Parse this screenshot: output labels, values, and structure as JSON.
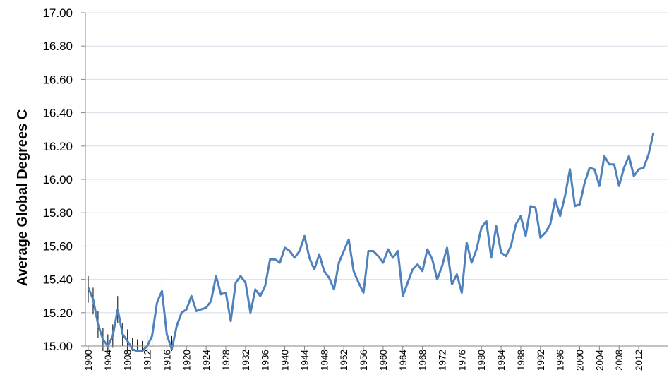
{
  "chart_data": {
    "type": "line",
    "title": "",
    "xlabel": "",
    "ylabel": "Average Global Degrees  C",
    "xlim": [
      1900,
      2015
    ],
    "ylim": [
      15.0,
      17.0
    ],
    "y_ticks": [
      "15.00",
      "15.20",
      "15.40",
      "15.60",
      "15.80",
      "16.00",
      "16.20",
      "16.40",
      "16.60",
      "16.80",
      "17.00"
    ],
    "x_ticks": [
      "1900",
      "1904",
      "1908",
      "1912",
      "1916",
      "1920",
      "1924",
      "1928",
      "1932",
      "1936",
      "1940",
      "1944",
      "1948",
      "1952",
      "1956",
      "1960",
      "1964",
      "1968",
      "1972",
      "1976",
      "1980",
      "1984",
      "1988",
      "1992",
      "1996",
      "2000",
      "2004",
      "2008",
      "2012"
    ],
    "grid": "horizontal",
    "colors": {
      "line": "#4f81bd",
      "grid": "#d9dee8",
      "axis": "#868686",
      "error_bar": "#000000"
    },
    "series": [
      {
        "x": [
          1900,
          1901,
          1902,
          1903,
          1904,
          1905,
          1906,
          1907,
          1908,
          1909,
          1910,
          1911,
          1912,
          1913,
          1914,
          1915,
          1916,
          1917,
          1918,
          1919,
          1920,
          1921,
          1922,
          1923,
          1924,
          1925,
          1926,
          1927,
          1928,
          1929,
          1930,
          1931,
          1932,
          1933,
          1934,
          1935,
          1936,
          1937,
          1938,
          1939,
          1940,
          1941,
          1942,
          1943,
          1944,
          1945,
          1946,
          1947,
          1948,
          1949,
          1950,
          1951,
          1952,
          1953,
          1954,
          1955,
          1956,
          1957,
          1958,
          1959,
          1960,
          1961,
          1962,
          1963,
          1964,
          1965,
          1966,
          1967,
          1968,
          1969,
          1970,
          1971,
          1972,
          1973,
          1974,
          1975,
          1976,
          1977,
          1978,
          1979,
          1980,
          1981,
          1982,
          1983,
          1984,
          1985,
          1986,
          1987,
          1988,
          1989,
          1990,
          1991,
          1992,
          1993,
          1994,
          1995,
          1996,
          1997,
          1998,
          1999,
          2000,
          2001,
          2002,
          2003,
          2004,
          2005,
          2006,
          2007,
          2008,
          2009,
          2010,
          2011,
          2012,
          2013,
          2014,
          2015
        ],
        "y": [
          15.35,
          15.28,
          15.13,
          15.04,
          15.0,
          15.06,
          15.22,
          15.07,
          15.03,
          14.98,
          14.97,
          14.96,
          15.0,
          15.06,
          15.26,
          15.33,
          15.07,
          14.98,
          15.12,
          15.2,
          15.22,
          15.3,
          15.21,
          15.22,
          15.23,
          15.27,
          15.42,
          15.31,
          15.32,
          15.15,
          15.38,
          15.42,
          15.38,
          15.2,
          15.34,
          15.3,
          15.36,
          15.52,
          15.52,
          15.5,
          15.59,
          15.57,
          15.53,
          15.57,
          15.66,
          15.53,
          15.46,
          15.55,
          15.45,
          15.41,
          15.34,
          15.5,
          15.57,
          15.64,
          15.45,
          15.38,
          15.32,
          15.57,
          15.57,
          15.54,
          15.5,
          15.58,
          15.53,
          15.57,
          15.3,
          15.38,
          15.46,
          15.49,
          15.45,
          15.58,
          15.52,
          15.4,
          15.48,
          15.59,
          15.37,
          15.43,
          15.32,
          15.62,
          15.5,
          15.58,
          15.71,
          15.75,
          15.53,
          15.72,
          15.56,
          15.54,
          15.6,
          15.73,
          15.78,
          15.66,
          15.84,
          15.83,
          15.65,
          15.68,
          15.73,
          15.88,
          15.78,
          15.9,
          16.06,
          15.84,
          15.85,
          15.98,
          16.07,
          16.06,
          15.96,
          16.14,
          16.09,
          16.09,
          15.96,
          16.07,
          16.14,
          16.02,
          16.06,
          16.07,
          16.15,
          16.28
        ]
      }
    ],
    "error_bars": [
      {
        "x": 1900,
        "lo": 15.26,
        "hi": 15.42
      },
      {
        "x": 1901,
        "lo": 15.19,
        "hi": 15.35
      },
      {
        "x": 1902,
        "lo": 15.05,
        "hi": 15.21
      },
      {
        "x": 1903,
        "lo": 14.97,
        "hi": 15.11
      },
      {
        "x": 1904,
        "lo": 14.93,
        "hi": 15.07
      },
      {
        "x": 1905,
        "lo": 14.99,
        "hi": 15.13
      },
      {
        "x": 1906,
        "lo": 15.14,
        "hi": 15.3
      },
      {
        "x": 1907,
        "lo": 15.0,
        "hi": 15.14
      },
      {
        "x": 1908,
        "lo": 14.96,
        "hi": 15.1
      },
      {
        "x": 1909,
        "lo": 14.91,
        "hi": 15.05
      },
      {
        "x": 1910,
        "lo": 14.9,
        "hi": 15.04
      },
      {
        "x": 1911,
        "lo": 14.89,
        "hi": 15.03
      },
      {
        "x": 1912,
        "lo": 14.93,
        "hi": 15.07
      },
      {
        "x": 1913,
        "lo": 14.99,
        "hi": 15.13
      },
      {
        "x": 1914,
        "lo": 15.18,
        "hi": 15.34
      },
      {
        "x": 1915,
        "lo": 15.25,
        "hi": 15.41
      },
      {
        "x": 1916,
        "lo": 15.0,
        "hi": 15.14
      },
      {
        "x": 1917,
        "lo": 14.92,
        "hi": 15.06
      }
    ]
  }
}
